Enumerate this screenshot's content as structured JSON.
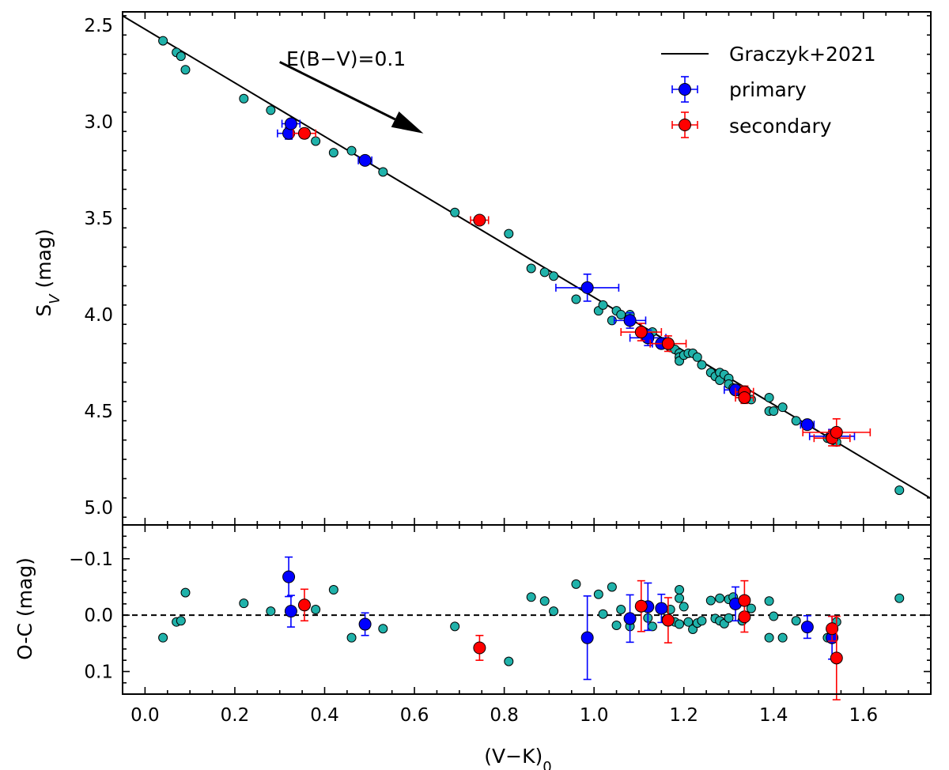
{
  "chart_data": {
    "type": "scatter",
    "xlabel": "(V−K)",
    "xlabel_sub": "0",
    "xlim": [
      -0.05,
      1.75
    ],
    "xticks": [
      "0.0",
      "0.2",
      "0.4",
      "0.6",
      "0.8",
      "1.0",
      "1.2",
      "1.4",
      "1.6"
    ],
    "panels": {
      "top": {
        "ylabel": "S",
        "ylabel_sub": "V",
        "ylabel_unit": " (mag)",
        "ylim": [
          2.43,
          5.09
        ],
        "inverted": true,
        "yticks": [
          "2.5",
          "3.0",
          "3.5",
          "4.0",
          "4.5",
          "5.0"
        ]
      },
      "bottom": {
        "ylabel": "O-C (mag)",
        "ylim": [
          0.14,
          -0.16
        ],
        "yticks": [
          "−0.1",
          "0.0",
          "0.1"
        ]
      }
    },
    "relation": {
      "name": "Graczyk+2021",
      "intercept": 2.52,
      "slope": 1.39
    },
    "annotation": {
      "text": "E(B−V)=0.1",
      "arrow_from": [
        0.3,
        2.69
      ],
      "arrow_to": [
        0.62,
        3.06
      ]
    },
    "legend": {
      "position": "top-right",
      "entries": [
        "Graczyk+2021",
        "primary",
        "secondary"
      ]
    },
    "colors": {
      "calibration": "#20b2aa",
      "primary": "#0000ff",
      "secondary": "#ff0000",
      "line": "#000000"
    },
    "series": [
      {
        "name": "calibration",
        "points": [
          {
            "x": 0.04,
            "sv": 2.58,
            "oc": 0.04
          },
          {
            "x": 0.07,
            "sv": 2.64,
            "oc": 0.012
          },
          {
            "x": 0.08,
            "sv": 2.66,
            "oc": 0.01
          },
          {
            "x": 0.09,
            "sv": 2.73,
            "oc": -0.04
          },
          {
            "x": 0.22,
            "sv": 2.88,
            "oc": -0.021
          },
          {
            "x": 0.28,
            "sv": 2.94,
            "oc": -0.007
          },
          {
            "x": 0.38,
            "sv": 3.1,
            "oc": -0.01
          },
          {
            "x": 0.42,
            "sv": 3.16,
            "oc": -0.045
          },
          {
            "x": 0.46,
            "sv": 3.15,
            "oc": 0.04
          },
          {
            "x": 0.53,
            "sv": 3.26,
            "oc": 0.024
          },
          {
            "x": 0.69,
            "sv": 3.47,
            "oc": 0.02
          },
          {
            "x": 0.81,
            "sv": 3.58,
            "oc": 0.082
          },
          {
            "x": 0.86,
            "sv": 3.76,
            "oc": -0.032
          },
          {
            "x": 0.89,
            "sv": 3.78,
            "oc": -0.025
          },
          {
            "x": 0.91,
            "sv": 3.8,
            "oc": -0.007
          },
          {
            "x": 0.96,
            "sv": 3.92,
            "oc": -0.055
          },
          {
            "x": 1.01,
            "sv": 3.98,
            "oc": -0.037
          },
          {
            "x": 1.02,
            "sv": 3.95,
            "oc": -0.002
          },
          {
            "x": 1.04,
            "sv": 4.03,
            "oc": -0.05
          },
          {
            "x": 1.05,
            "sv": 3.98,
            "oc": 0.018
          },
          {
            "x": 1.06,
            "sv": 4.0,
            "oc": -0.01
          },
          {
            "x": 1.08,
            "sv": 4.0,
            "oc": 0.02
          },
          {
            "x": 1.12,
            "sv": 4.12,
            "oc": 0.005
          },
          {
            "x": 1.13,
            "sv": 4.09,
            "oc": 0.02
          },
          {
            "x": 1.16,
            "sv": 4.15,
            "oc": 0.008
          },
          {
            "x": 1.17,
            "sv": 4.17,
            "oc": -0.01
          },
          {
            "x": 1.18,
            "sv": 4.18,
            "oc": 0.012
          },
          {
            "x": 1.19,
            "sv": 4.2,
            "oc": 0.016
          },
          {
            "x": 1.19,
            "sv": 4.22,
            "oc": -0.03
          },
          {
            "x": 1.19,
            "sv": 4.24,
            "oc": -0.045
          },
          {
            "x": 1.2,
            "sv": 4.21,
            "oc": -0.015
          },
          {
            "x": 1.21,
            "sv": 4.2,
            "oc": 0.012
          },
          {
            "x": 1.22,
            "sv": 4.2,
            "oc": 0.025
          },
          {
            "x": 1.23,
            "sv": 4.22,
            "oc": 0.014
          },
          {
            "x": 1.24,
            "sv": 4.26,
            "oc": 0.01
          },
          {
            "x": 1.26,
            "sv": 4.3,
            "oc": -0.026
          },
          {
            "x": 1.27,
            "sv": 4.32,
            "oc": 0.006
          },
          {
            "x": 1.28,
            "sv": 4.3,
            "oc": -0.03
          },
          {
            "x": 1.28,
            "sv": 4.34,
            "oc": 0.01
          },
          {
            "x": 1.29,
            "sv": 4.31,
            "oc": 0.015
          },
          {
            "x": 1.3,
            "sv": 4.33,
            "oc": -0.028
          },
          {
            "x": 1.3,
            "sv": 4.36,
            "oc": 0.005
          },
          {
            "x": 1.31,
            "sv": 4.38,
            "oc": -0.032
          },
          {
            "x": 1.33,
            "sv": 4.41,
            "oc": 0.01
          },
          {
            "x": 1.35,
            "sv": 4.44,
            "oc": -0.012
          },
          {
            "x": 1.39,
            "sv": 4.43,
            "oc": 0.04
          },
          {
            "x": 1.39,
            "sv": 4.5,
            "oc": -0.025
          },
          {
            "x": 1.4,
            "sv": 4.5,
            "oc": 0.002
          },
          {
            "x": 1.42,
            "sv": 4.48,
            "oc": 0.04
          },
          {
            "x": 1.45,
            "sv": 4.55,
            "oc": 0.01
          },
          {
            "x": 1.52,
            "sv": 4.64,
            "oc": 0.04
          },
          {
            "x": 1.54,
            "sv": 4.66,
            "oc": 0.012
          },
          {
            "x": 1.68,
            "sv": 4.91,
            "oc": -0.03
          }
        ]
      },
      {
        "name": "primary",
        "points": [
          {
            "x": 0.32,
            "sv": 3.06,
            "oc": -0.068,
            "xerr": 0.025,
            "sverr": 0.03,
            "ocerr": 0.035
          },
          {
            "x": 0.325,
            "sv": 3.01,
            "oc": -0.007,
            "xerr": 0.02,
            "sverr": 0.02,
            "ocerr": 0.028
          },
          {
            "x": 0.49,
            "sv": 3.2,
            "oc": 0.016,
            "xerr": 0.015,
            "sverr": 0.02,
            "ocerr": 0.02
          },
          {
            "x": 0.985,
            "sv": 3.86,
            "oc": 0.04,
            "xerr": 0.07,
            "sverr": 0.07,
            "ocerr": 0.074
          },
          {
            "x": 1.08,
            "sv": 4.03,
            "oc": 0.006,
            "xerr": 0.035,
            "sverr": 0.04,
            "ocerr": 0.042
          },
          {
            "x": 1.12,
            "sv": 4.12,
            "oc": -0.015,
            "xerr": 0.04,
            "sverr": 0.04,
            "ocerr": 0.042
          },
          {
            "x": 1.15,
            "sv": 4.15,
            "oc": -0.012,
            "xerr": 0.02,
            "sverr": 0.02,
            "ocerr": 0.025
          },
          {
            "x": 1.315,
            "sv": 4.39,
            "oc": -0.02,
            "xerr": 0.025,
            "sverr": 0.02,
            "ocerr": 0.03
          },
          {
            "x": 1.475,
            "sv": 4.57,
            "oc": 0.021,
            "xerr": 0.015,
            "sverr": 0.02,
            "ocerr": 0.02
          },
          {
            "x": 1.53,
            "sv": 4.63,
            "oc": 0.04,
            "xerr": 0.05,
            "sverr": 0.035,
            "ocerr": 0.038
          }
        ]
      },
      {
        "name": "secondary",
        "points": [
          {
            "x": 0.355,
            "sv": 3.06,
            "oc": -0.018,
            "xerr": 0.025,
            "sverr": 0.025,
            "ocerr": 0.028
          },
          {
            "x": 0.745,
            "sv": 3.51,
            "oc": 0.058,
            "xerr": 0.02,
            "sverr": 0.02,
            "ocerr": 0.022
          },
          {
            "x": 1.105,
            "sv": 4.09,
            "oc": -0.016,
            "xerr": 0.045,
            "sverr": 0.045,
            "ocerr": 0.045
          },
          {
            "x": 1.165,
            "sv": 4.15,
            "oc": 0.009,
            "xerr": 0.04,
            "sverr": 0.04,
            "ocerr": 0.04
          },
          {
            "x": 1.335,
            "sv": 4.4,
            "oc": 0.003,
            "xerr": 0.02,
            "sverr": 0.03,
            "ocerr": 0.027
          },
          {
            "x": 1.335,
            "sv": 4.43,
            "oc": -0.026,
            "xerr": 0.02,
            "sverr": 0.03,
            "ocerr": 0.035
          },
          {
            "x": 1.53,
            "sv": 4.64,
            "oc": 0.024,
            "xerr": 0.04,
            "sverr": 0.04,
            "ocerr": 0.022
          },
          {
            "x": 1.54,
            "sv": 4.61,
            "oc": 0.076,
            "xerr": 0.075,
            "sverr": 0.07,
            "ocerr": 0.074
          }
        ]
      }
    ]
  }
}
